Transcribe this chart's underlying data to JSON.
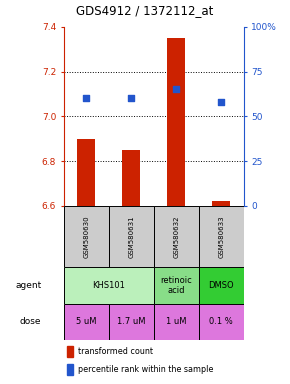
{
  "title": "GDS4912 / 1372112_at",
  "samples": [
    "GSM580630",
    "GSM580631",
    "GSM580632",
    "GSM580633"
  ],
  "bar_values": [
    6.9,
    6.85,
    7.35,
    6.62
  ],
  "bar_baseline": 6.6,
  "percentile_values": [
    60,
    60,
    65,
    58
  ],
  "ylim_left": [
    6.6,
    7.4
  ],
  "ylim_right": [
    0,
    100
  ],
  "yticks_left": [
    6.6,
    6.8,
    7.0,
    7.2,
    7.4
  ],
  "yticks_right": [
    0,
    25,
    50,
    75,
    100
  ],
  "bar_color": "#cc2200",
  "dot_color": "#2255cc",
  "grid_lines": [
    6.8,
    7.0,
    7.2
  ],
  "agent_data": [
    [
      0,
      2,
      "KHS101",
      "#bbf0bb"
    ],
    [
      2,
      3,
      "retinoic\nacid",
      "#88dd88"
    ],
    [
      3,
      4,
      "DMSO",
      "#33cc33"
    ]
  ],
  "dose_labels": [
    "5 uM",
    "1.7 uM",
    "1 uM",
    "0.1 %"
  ],
  "dose_color": "#dd77dd",
  "sample_bg": "#cccccc",
  "legend_bar_color": "#cc2200",
  "legend_dot_color": "#2255cc"
}
